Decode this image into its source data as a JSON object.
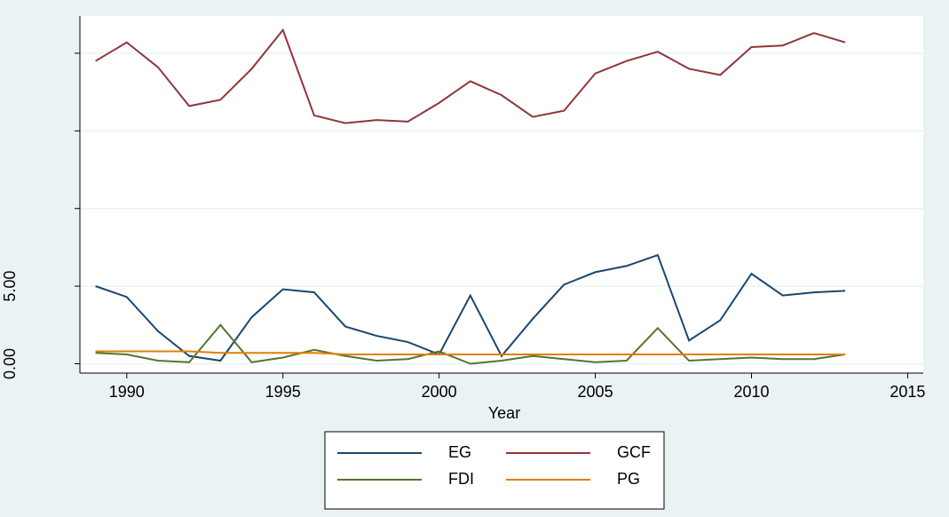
{
  "chart_data": {
    "type": "line",
    "x": [
      1989,
      1990,
      1991,
      1992,
      1993,
      1994,
      1995,
      1996,
      1997,
      1998,
      1999,
      2000,
      2001,
      2002,
      2003,
      2004,
      2005,
      2006,
      2007,
      2008,
      2009,
      2010,
      2011,
      2012,
      2013
    ],
    "xlabel": "Year",
    "xlim": [
      1988.5,
      2015.5
    ],
    "xticks": [
      1990,
      1995,
      2000,
      2005,
      2010,
      2015
    ],
    "ylim": [
      -0.6,
      22.4
    ],
    "yticks": [
      {
        "value": 0,
        "label": "0.00"
      },
      {
        "value": 5,
        "label": "5.00"
      }
    ],
    "ygrid": [
      0,
      5,
      10,
      15,
      20
    ],
    "grid": true,
    "legend": "bottom",
    "series": [
      {
        "name": "EG",
        "color": "#1a476f",
        "values": [
          5.0,
          4.3,
          2.1,
          0.5,
          0.2,
          3.0,
          4.8,
          4.6,
          2.4,
          1.8,
          1.4,
          0.6,
          4.4,
          0.5,
          2.9,
          5.1,
          5.9,
          6.3,
          7.0,
          1.5,
          2.8,
          5.8,
          4.4,
          4.6,
          4.7
        ]
      },
      {
        "name": "GCF",
        "color": "#90353b",
        "values": [
          19.5,
          20.7,
          19.1,
          16.6,
          17.0,
          19.0,
          21.5,
          16.0,
          15.5,
          15.7,
          15.6,
          16.8,
          18.2,
          17.3,
          15.9,
          16.3,
          18.7,
          19.5,
          20.1,
          19.0,
          18.6,
          20.4,
          20.5,
          21.3,
          20.7
        ]
      },
      {
        "name": "FDI",
        "color": "#55752f",
        "values": [
          0.7,
          0.6,
          0.2,
          0.1,
          2.5,
          0.1,
          0.4,
          0.9,
          0.5,
          0.2,
          0.3,
          0.8,
          0.0,
          0.2,
          0.5,
          0.3,
          0.1,
          0.2,
          2.3,
          0.2,
          0.3,
          0.4,
          0.3,
          0.3,
          0.6
        ]
      },
      {
        "name": "PG",
        "color": "#e37e00",
        "values": [
          0.8,
          0.8,
          0.8,
          0.8,
          0.7,
          0.7,
          0.7,
          0.7,
          0.6,
          0.6,
          0.6,
          0.6,
          0.6,
          0.6,
          0.6,
          0.6,
          0.6,
          0.6,
          0.6,
          0.6,
          0.6,
          0.6,
          0.6,
          0.6,
          0.6
        ]
      }
    ]
  }
}
